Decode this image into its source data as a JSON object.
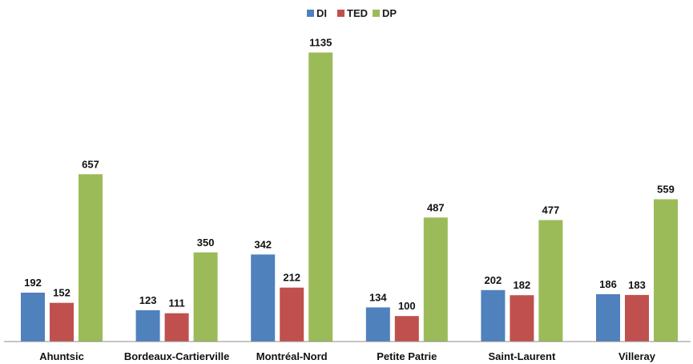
{
  "chart_data": {
    "type": "bar",
    "title": "",
    "xlabel": "",
    "ylabel": "",
    "categories": [
      "Ahuntsic",
      "Bordeaux-Cartierville",
      "Montréal-Nord",
      "Petite Patrie",
      "Saint-Laurent",
      "Villeray"
    ],
    "series": [
      {
        "name": "DI",
        "color": "#4f81bd",
        "values": [
          192,
          123,
          342,
          134,
          202,
          186
        ]
      },
      {
        "name": "TED",
        "color": "#c0504d",
        "values": [
          152,
          111,
          212,
          100,
          182,
          183
        ]
      },
      {
        "name": "DP",
        "color": "#9bbb59",
        "values": [
          657,
          350,
          1135,
          487,
          477,
          559
        ]
      }
    ],
    "ylim": [
      0,
      1250
    ],
    "grid": false,
    "legend_position": "top-center",
    "data_labels": true
  }
}
